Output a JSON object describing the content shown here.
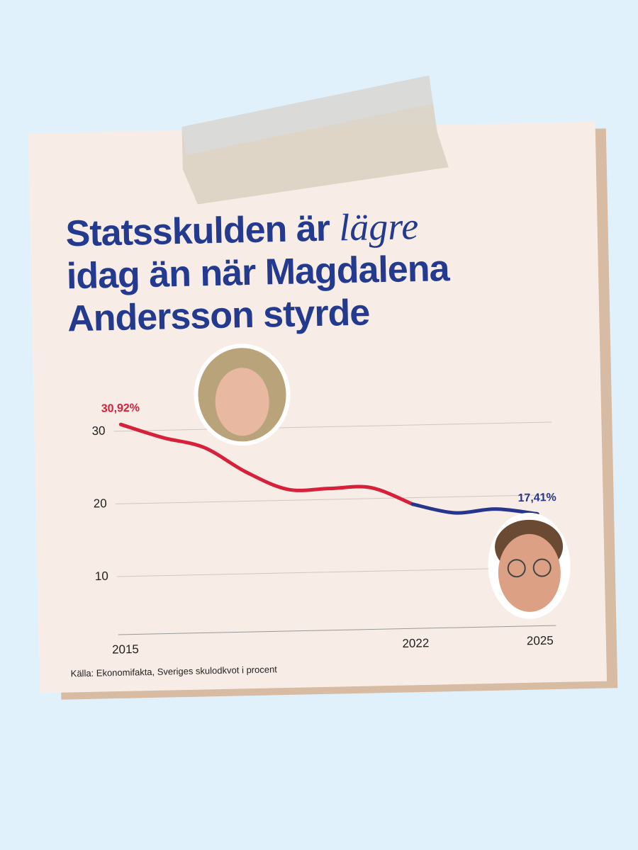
{
  "chart_data": {
    "type": "line",
    "title": [
      "Statsskulden är",
      "lägre",
      "idag än när Magdalena",
      "Andersson styrde"
    ],
    "source": "Källa: Ekonomifakta, Sveriges skulodkvot i procent",
    "x": [
      2015,
      2016,
      2017,
      2018,
      2019,
      2020,
      2021,
      2022,
      2023,
      2024,
      2025
    ],
    "xlim": [
      2015,
      2025
    ],
    "xticks": [
      2015,
      2022,
      2025
    ],
    "ylim": [
      2,
      33
    ],
    "yticks": [
      10,
      20,
      30
    ],
    "grid": true,
    "series": [
      {
        "color": "#d7203a",
        "values": [
          30.92,
          29,
          27.5,
          24,
          21.5,
          21.5,
          21.5,
          19.1,
          null,
          null,
          null
        ],
        "value_labels": [
          "30,92%",
          null,
          null,
          null,
          null,
          null,
          null,
          null,
          null,
          null,
          null
        ]
      },
      {
        "color": "#27368d",
        "values": [
          null,
          null,
          null,
          null,
          null,
          null,
          null,
          19.1,
          17.8,
          18.2,
          17.41
        ],
        "value_labels": [
          null,
          null,
          null,
          null,
          null,
          null,
          null,
          null,
          null,
          null,
          "17,41%"
        ]
      }
    ]
  }
}
